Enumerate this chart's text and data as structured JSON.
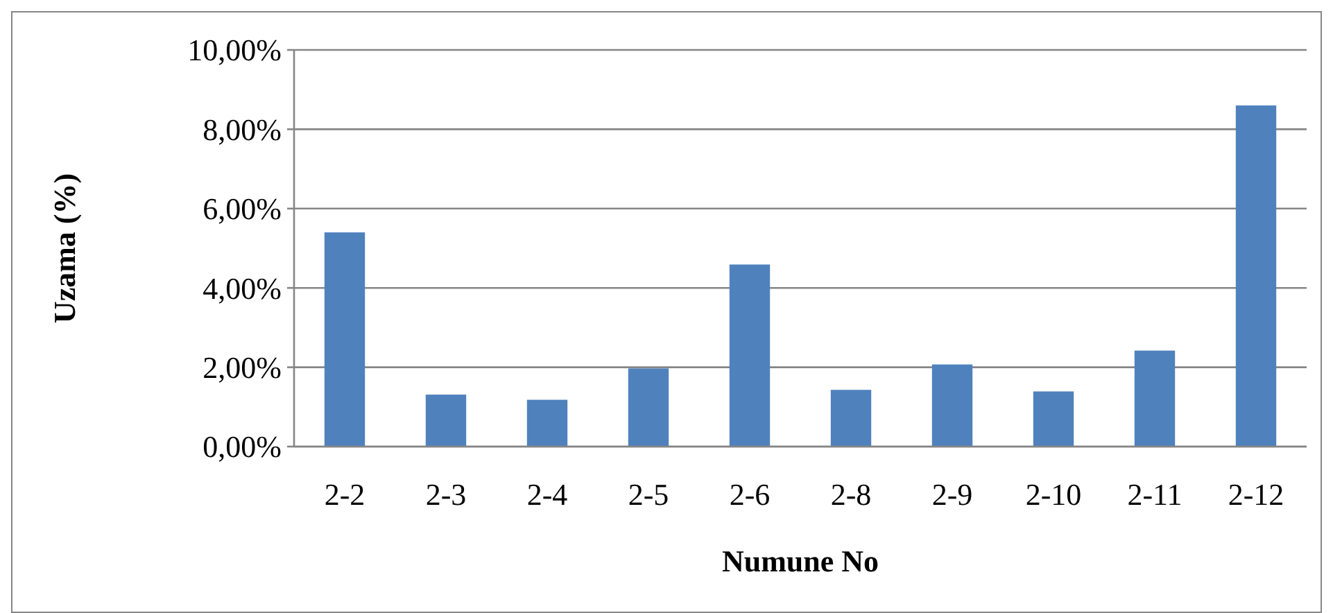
{
  "chart_data": {
    "type": "bar",
    "xlabel": "Numune No",
    "ylabel": "Uzama (%)",
    "categories": [
      "2-2",
      "2-3",
      "2-4",
      "2-5",
      "2-6",
      "2-8",
      "2-9",
      "2-10",
      "2-11",
      "2-12"
    ],
    "values": [
      5.4,
      1.31,
      1.18,
      1.97,
      4.59,
      1.43,
      2.07,
      1.39,
      2.42,
      8.6
    ],
    "color": "#4f81bd",
    "ylim": [
      0,
      10
    ],
    "yticks": [
      {
        "value": 0,
        "label": "0,00%"
      },
      {
        "value": 2,
        "label": "2,00%"
      },
      {
        "value": 4,
        "label": "4,00%"
      },
      {
        "value": 6,
        "label": "6,00%"
      },
      {
        "value": 8,
        "label": "8,00%"
      },
      {
        "value": 10,
        "label": "10,00%"
      }
    ],
    "grid": "y"
  }
}
